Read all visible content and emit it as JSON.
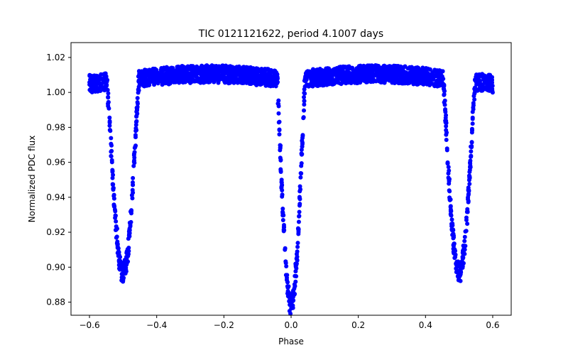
{
  "chart_data": {
    "type": "scatter",
    "title": "TIC 0121121622, period 4.1007 days",
    "xlabel": "Phase",
    "ylabel": "Normalized PDC flux",
    "xlim": [
      -0.655,
      0.655
    ],
    "ylim": [
      0.8725,
      1.0285
    ],
    "xticks": [
      -0.6,
      -0.4,
      -0.2,
      0.0,
      0.2,
      0.4,
      0.6
    ],
    "xtick_labels": [
      "−0.6",
      "−0.4",
      "−0.2",
      "0.0",
      "0.2",
      "0.4",
      "0.6"
    ],
    "yticks": [
      0.88,
      0.9,
      0.92,
      0.94,
      0.96,
      0.98,
      1.0,
      1.02
    ],
    "ytick_labels": [
      "0.88",
      "0.90",
      "0.92",
      "0.94",
      "0.96",
      "0.98",
      "1.00",
      "1.02"
    ],
    "grid": false,
    "series": [
      {
        "name": "PDC flux",
        "color": "#0000ff",
        "marker": "circle",
        "x_range": [
          -0.6,
          0.6
        ],
        "baseline": 1.007,
        "scatter_halfwidth": 0.005,
        "out_of_eclipse_hump": 0.007,
        "eclipses": [
          {
            "center": -0.5,
            "min_flux": 0.897,
            "halfwidth": 0.048
          },
          {
            "center": 0.0,
            "min_flux": 0.879,
            "halfwidth": 0.042
          },
          {
            "center": 0.5,
            "min_flux": 0.897,
            "halfwidth": 0.048
          }
        ]
      }
    ]
  }
}
